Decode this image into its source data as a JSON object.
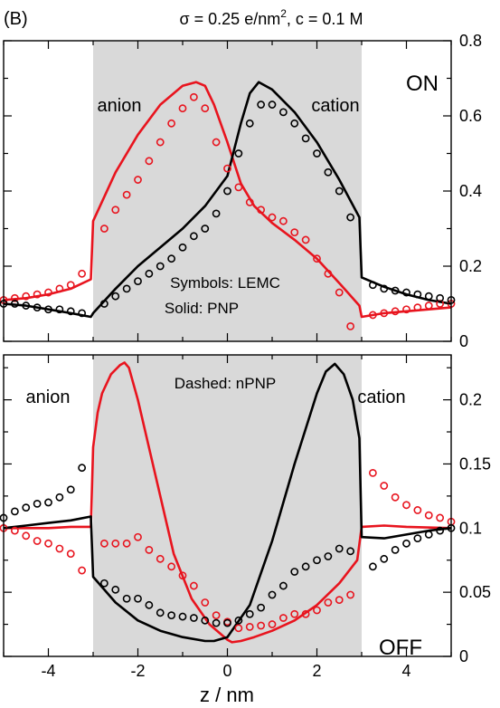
{
  "figure": {
    "label": "(B)",
    "title_prefix": "σ = 0.25 e/nm",
    "title_sup": "2",
    "title_suffix": ", c = 0.1 M",
    "xlabel": "z / nm"
  },
  "colors": {
    "anion": "#e8141e",
    "cation": "#000000",
    "shade": "#d9d9d9"
  },
  "chart_data": [
    {
      "type": "line",
      "panel": "ON",
      "xlim": [
        -5,
        5
      ],
      "ylim": [
        0,
        0.8
      ],
      "yticks": [
        0,
        0.2,
        0.4,
        0.6,
        0.8
      ],
      "xticks": [
        -4,
        -2,
        0,
        2,
        4
      ],
      "shaded_region": [
        -3,
        3
      ],
      "grid": false,
      "panel_label": "ON",
      "annotations": [
        "Symbols: LEMC",
        "Solid: PNP"
      ],
      "series_labels": {
        "anion": "anion",
        "cation": "cation"
      },
      "series": [
        {
          "name": "anion",
          "style": "solid",
          "x": [
            -5,
            -4.5,
            -4,
            -3.5,
            -3.05,
            -3,
            -2.5,
            -2,
            -1.5,
            -1,
            -0.7,
            -0.5,
            -0.3,
            0,
            0.3,
            0.6,
            1,
            1.5,
            2,
            2.5,
            2.95,
            3,
            3.5,
            4,
            4.5,
            5
          ],
          "y": [
            0.11,
            0.115,
            0.125,
            0.14,
            0.165,
            0.32,
            0.45,
            0.55,
            0.63,
            0.68,
            0.69,
            0.68,
            0.63,
            0.53,
            0.42,
            0.36,
            0.315,
            0.27,
            0.22,
            0.155,
            0.095,
            0.065,
            0.075,
            0.08,
            0.085,
            0.09
          ]
        },
        {
          "name": "cation",
          "style": "solid",
          "x": [
            -5,
            -4.5,
            -4,
            -3.5,
            -3.05,
            -3,
            -2.5,
            -2,
            -1.5,
            -1,
            -0.5,
            0,
            0.3,
            0.5,
            0.7,
            1,
            1.5,
            2,
            2.5,
            2.95,
            3,
            3.5,
            4,
            4.5,
            5
          ],
          "y": [
            0.1,
            0.095,
            0.085,
            0.075,
            0.065,
            0.075,
            0.14,
            0.2,
            0.25,
            0.3,
            0.36,
            0.44,
            0.58,
            0.66,
            0.69,
            0.67,
            0.61,
            0.53,
            0.43,
            0.33,
            0.17,
            0.145,
            0.125,
            0.11,
            0.1
          ]
        },
        {
          "name": "anion",
          "style": "circles",
          "x": [
            -5,
            -4.75,
            -4.5,
            -4.25,
            -4,
            -3.75,
            -3.5,
            -3.25,
            -2.75,
            -2.5,
            -2.25,
            -2,
            -1.75,
            -1.5,
            -1.25,
            -1,
            -0.75,
            -0.5,
            -0.25,
            0,
            0.25,
            0.5,
            0.75,
            1,
            1.25,
            1.5,
            1.75,
            2,
            2.25,
            2.5,
            2.75,
            3.25,
            3.5,
            3.75,
            4,
            4.25,
            4.5,
            4.75,
            5
          ],
          "y": [
            0.11,
            0.115,
            0.12,
            0.125,
            0.13,
            0.14,
            0.15,
            0.18,
            0.3,
            0.35,
            0.39,
            0.43,
            0.48,
            0.53,
            0.58,
            0.62,
            0.65,
            0.62,
            0.53,
            0.46,
            0.41,
            0.37,
            0.35,
            0.33,
            0.32,
            0.29,
            0.27,
            0.22,
            0.18,
            0.13,
            0.04,
            0.07,
            0.075,
            0.08,
            0.085,
            0.09,
            0.095,
            0.1,
            0.1
          ]
        },
        {
          "name": "cation",
          "style": "circles",
          "x": [
            -5,
            -4.75,
            -4.5,
            -4.25,
            -4,
            -3.75,
            -3.5,
            -3.25,
            -2.75,
            -2.5,
            -2.25,
            -2,
            -1.75,
            -1.5,
            -1.25,
            -1,
            -0.75,
            -0.5,
            -0.25,
            0,
            0.25,
            0.5,
            0.75,
            1,
            1.25,
            1.5,
            1.75,
            2,
            2.25,
            2.5,
            2.75,
            3.25,
            3.5,
            3.75,
            4,
            4.25,
            4.5,
            4.75,
            5
          ],
          "y": [
            0.1,
            0.1,
            0.095,
            0.09,
            0.085,
            0.085,
            0.08,
            0.075,
            0.1,
            0.12,
            0.14,
            0.16,
            0.18,
            0.2,
            0.22,
            0.25,
            0.28,
            0.3,
            0.34,
            0.4,
            0.5,
            0.58,
            0.63,
            0.63,
            0.61,
            0.58,
            0.54,
            0.5,
            0.45,
            0.4,
            0.33,
            0.15,
            0.14,
            0.135,
            0.13,
            0.125,
            0.12,
            0.115,
            0.11
          ]
        }
      ]
    },
    {
      "type": "line",
      "panel": "OFF",
      "xlim": [
        -5,
        5
      ],
      "ylim": [
        0,
        0.235
      ],
      "yticks": [
        0,
        0.05,
        0.1,
        0.15,
        0.2
      ],
      "ytick_labels": [
        "0",
        "0.05",
        "0.1",
        "0.15",
        "0.2"
      ],
      "xticks": [
        -4,
        -2,
        0,
        2,
        4
      ],
      "shaded_region": [
        -3,
        3
      ],
      "grid": false,
      "panel_label": "OFF",
      "annotations": [
        "Dashed: nPNP"
      ],
      "series_labels": {
        "anion": "anion",
        "cation": "cation"
      },
      "series": [
        {
          "name": "anion",
          "style": "solid",
          "x": [
            -5,
            -4,
            -3.5,
            -3.05,
            -3,
            -2.9,
            -2.8,
            -2.6,
            -2.4,
            -2.3,
            -2.2,
            -2,
            -1.6,
            -1.2,
            -0.8,
            -0.4,
            0,
            0.1,
            0.3,
            0.6,
            1,
            1.5,
            2,
            2.5,
            2.9,
            3,
            3.5,
            4,
            5
          ],
          "y": [
            0.1,
            0.1,
            0.101,
            0.101,
            0.163,
            0.19,
            0.205,
            0.22,
            0.227,
            0.229,
            0.225,
            0.2,
            0.14,
            0.08,
            0.045,
            0.025,
            0.013,
            0.011,
            0.012,
            0.015,
            0.02,
            0.028,
            0.04,
            0.057,
            0.075,
            0.101,
            0.102,
            0.101,
            0.1
          ]
        },
        {
          "name": "cation",
          "style": "solid",
          "x": [
            -5,
            -4.5,
            -4,
            -3.5,
            -3.05,
            -3,
            -2.5,
            -2,
            -1.5,
            -1,
            -0.5,
            -0.3,
            0,
            0.5,
            1,
            1.5,
            2,
            2.2,
            2.4,
            2.6,
            2.8,
            2.95,
            3,
            3.5,
            4,
            4.5,
            5
          ],
          "y": [
            0.1,
            0.102,
            0.104,
            0.106,
            0.109,
            0.062,
            0.042,
            0.028,
            0.02,
            0.015,
            0.012,
            0.012,
            0.015,
            0.04,
            0.09,
            0.15,
            0.205,
            0.222,
            0.228,
            0.22,
            0.2,
            0.17,
            0.093,
            0.092,
            0.095,
            0.098,
            0.1
          ]
        },
        {
          "name": "anion",
          "style": "circles",
          "x": [
            -5,
            -4.75,
            -4.5,
            -4.25,
            -4,
            -3.75,
            -3.5,
            -3.25,
            -2.75,
            -2.5,
            -2.25,
            -2,
            -1.75,
            -1.5,
            -1.25,
            -1,
            -0.75,
            -0.5,
            -0.25,
            0,
            0.25,
            0.5,
            0.75,
            1,
            1.25,
            1.5,
            1.75,
            2,
            2.25,
            2.5,
            2.75,
            3.25,
            3.5,
            3.75,
            4,
            4.25,
            4.5,
            4.75,
            5
          ],
          "y": [
            0.1,
            0.098,
            0.094,
            0.09,
            0.088,
            0.084,
            0.08,
            0.067,
            0.088,
            0.088,
            0.088,
            0.093,
            0.083,
            0.076,
            0.07,
            0.063,
            0.055,
            0.042,
            0.032,
            0.027,
            0.022,
            0.023,
            0.024,
            0.025,
            0.03,
            0.033,
            0.033,
            0.036,
            0.042,
            0.044,
            0.048,
            0.143,
            0.133,
            0.124,
            0.118,
            0.114,
            0.11,
            0.108,
            0.105
          ]
        },
        {
          "name": "cation",
          "style": "circles",
          "x": [
            -5,
            -4.75,
            -4.5,
            -4.25,
            -4,
            -3.75,
            -3.5,
            -3.25,
            -2.75,
            -2.5,
            -2.25,
            -2,
            -1.75,
            -1.5,
            -1.25,
            -1,
            -0.75,
            -0.5,
            -0.25,
            0,
            0.25,
            0.5,
            0.75,
            1,
            1.25,
            1.5,
            1.75,
            2,
            2.25,
            2.5,
            2.75,
            3.25,
            3.5,
            3.75,
            4,
            4.25,
            4.5,
            4.75,
            5
          ],
          "y": [
            0.108,
            0.113,
            0.116,
            0.119,
            0.12,
            0.124,
            0.13,
            0.147,
            0.057,
            0.052,
            0.045,
            0.045,
            0.04,
            0.034,
            0.032,
            0.031,
            0.03,
            0.028,
            0.026,
            0.026,
            0.028,
            0.033,
            0.038,
            0.048,
            0.055,
            0.066,
            0.07,
            0.075,
            0.078,
            0.084,
            0.082,
            0.07,
            0.076,
            0.083,
            0.088,
            0.092,
            0.095,
            0.098,
            0.1
          ]
        }
      ]
    }
  ]
}
